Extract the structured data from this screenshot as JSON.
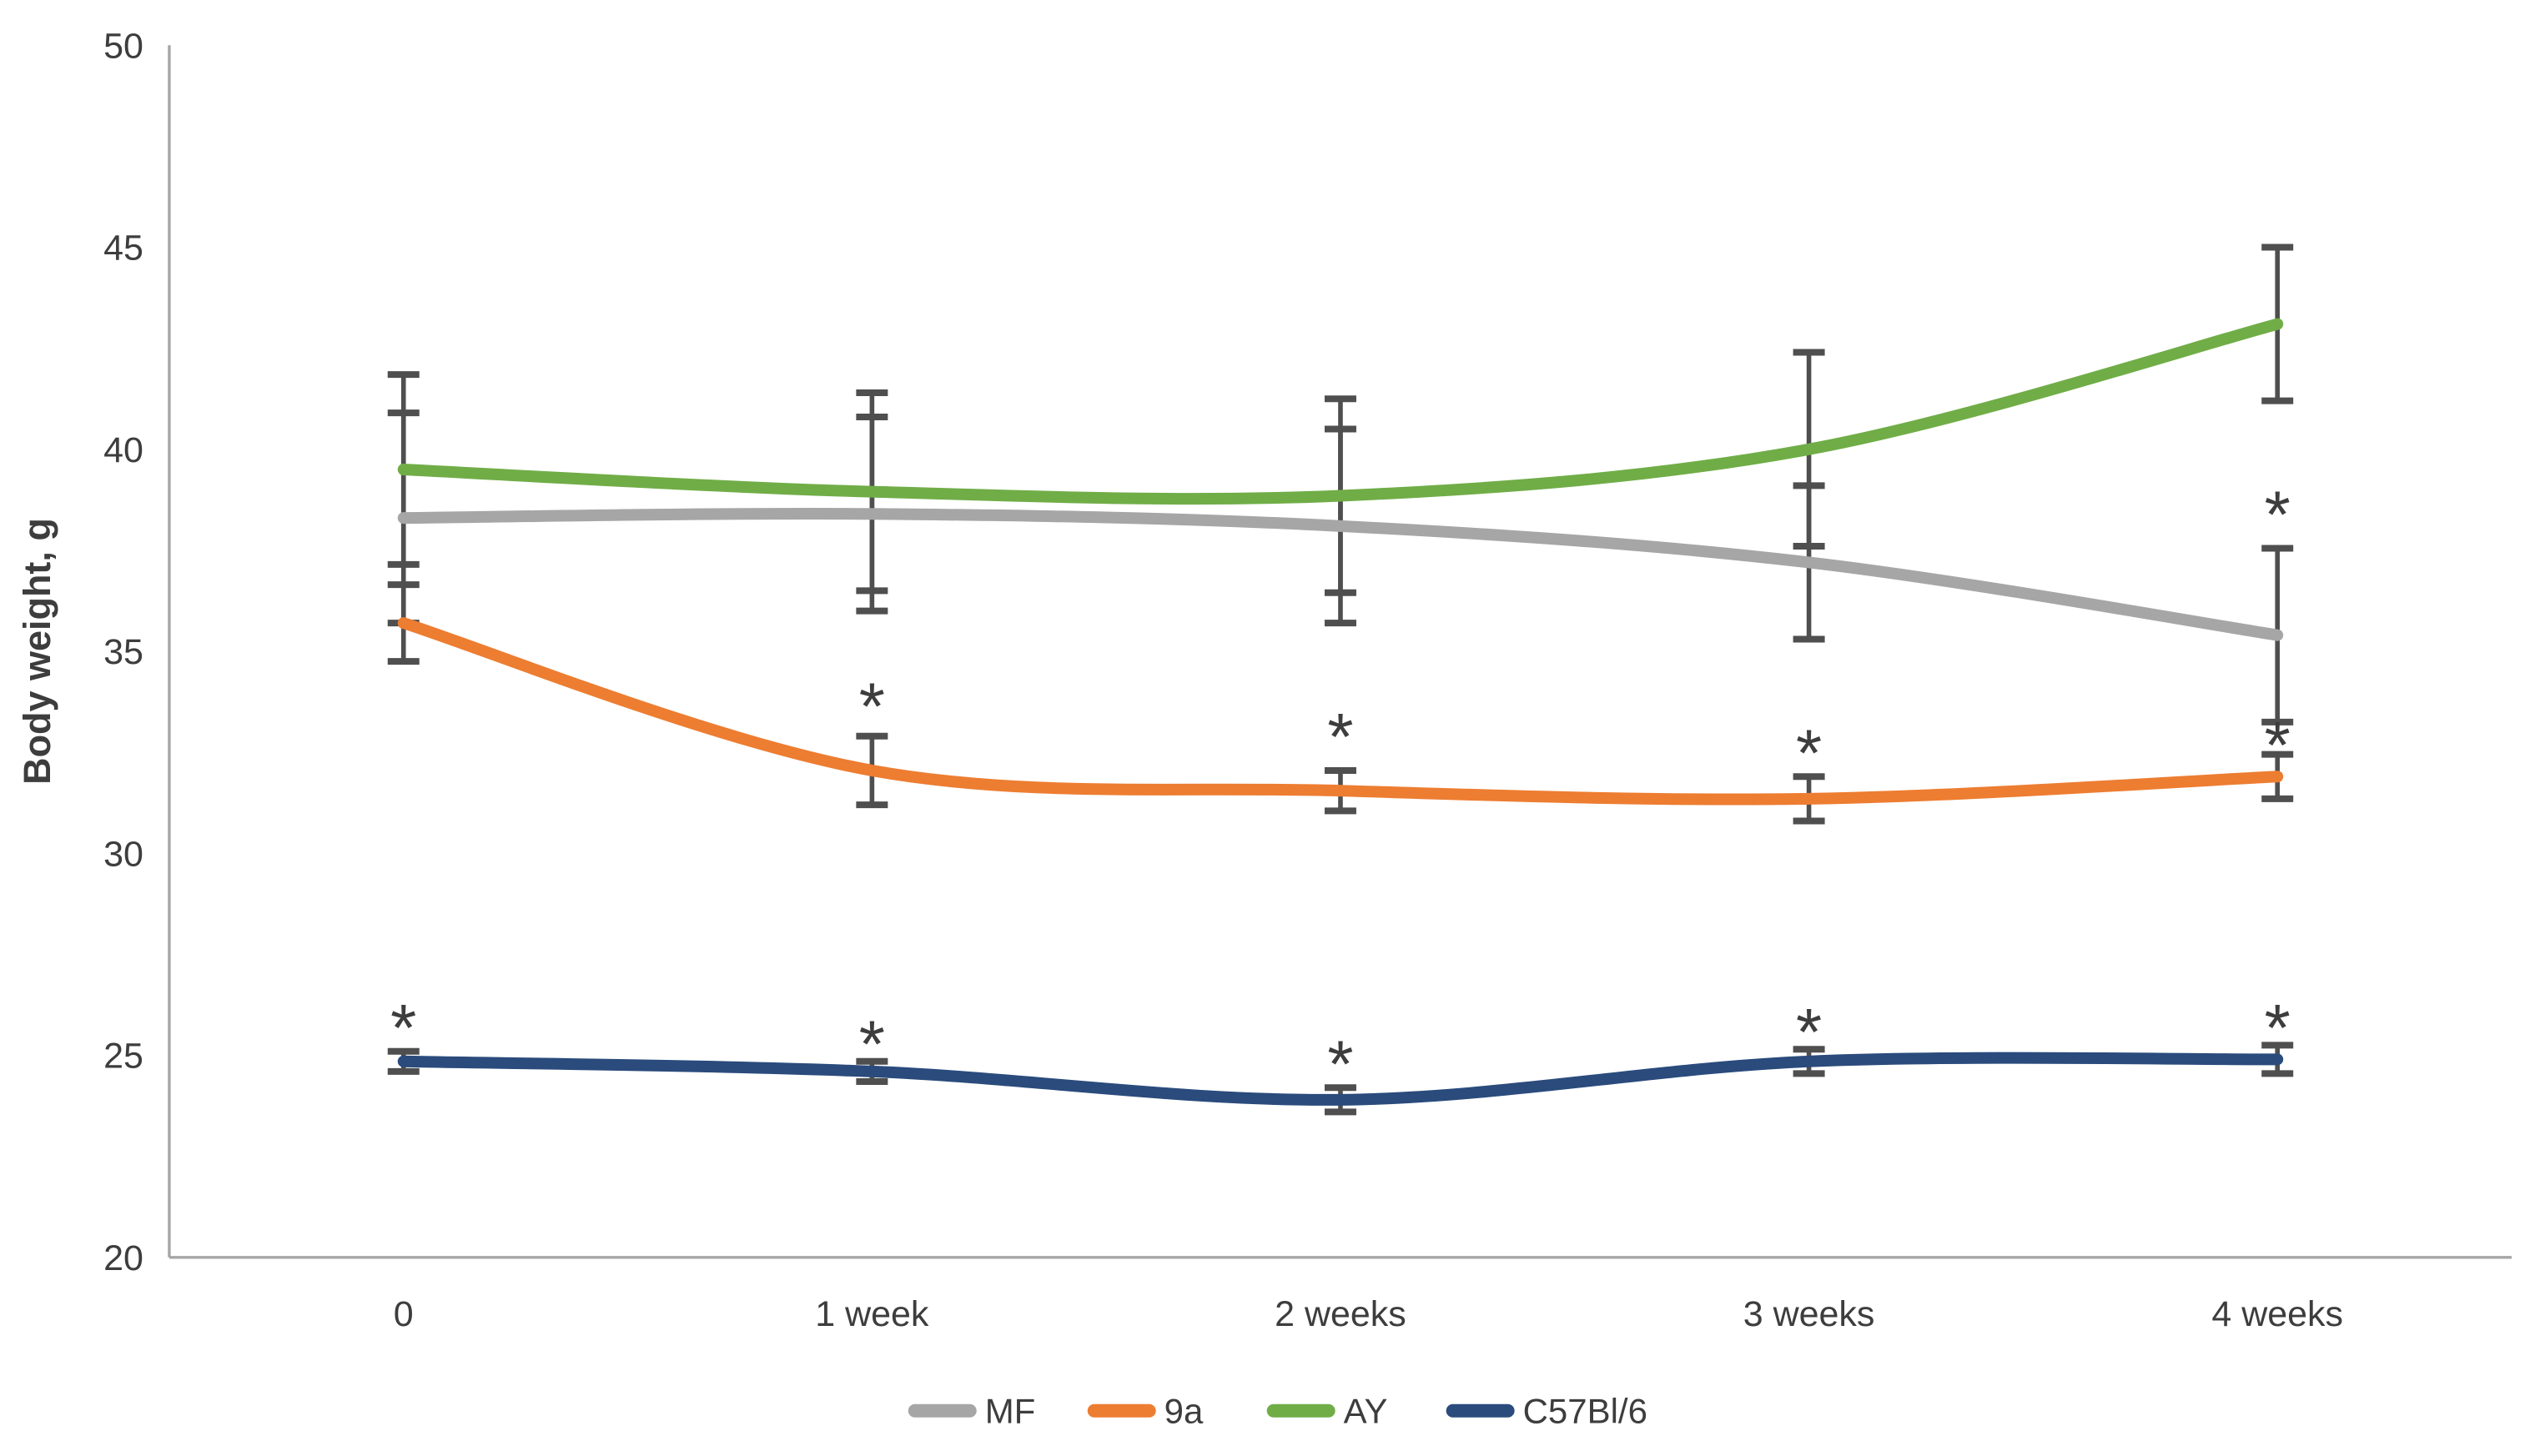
{
  "figure": {
    "kind": "line-chart-with-error-bars",
    "background": "#ffffff"
  },
  "y_axis": {
    "title": "Body weight, g",
    "min": 20,
    "max": 50,
    "step": 5,
    "tick_labels": [
      "50",
      "45",
      "40",
      "35",
      "30",
      "25",
      "20"
    ]
  },
  "x_axis": {
    "categories": [
      "0",
      "1 week",
      "2 weeks",
      "3 weeks",
      "4 weeks"
    ]
  },
  "legend": {
    "position": "bottom",
    "items": [
      {
        "label": "MF",
        "color": "#a6a6a6"
      },
      {
        "label": "9a",
        "color": "#ed7d31"
      },
      {
        "label": "AY",
        "color": "#70ad47"
      },
      {
        "label": "C57Bl/6",
        "color": "#2a4b7c"
      }
    ]
  },
  "marks": {
    "significance_symbol": "*"
  },
  "colors": {
    "axis_line": "#a6a6a6",
    "error_bar": "#4f4f4f",
    "text": "#3d3d3d",
    "asterisk": "#1a1a1a"
  },
  "chart_data": {
    "type": "line",
    "title": "",
    "xlabel": "",
    "ylabel": "Body weight, g",
    "ylim": [
      20,
      50
    ],
    "ytick_step": 5,
    "grid": false,
    "smoothed_lines": true,
    "legend_position": "bottom",
    "categories": [
      "0",
      "1 week",
      "2 weeks",
      "3 weeks",
      "4 weeks"
    ],
    "series": [
      {
        "name": "MF",
        "color": "#a6a6a6",
        "values": [
          38.3,
          38.4,
          38.1,
          37.2,
          35.4
        ],
        "errors": [
          2.6,
          2.4,
          2.4,
          1.9,
          2.15
        ],
        "asterisks": [
          null,
          null,
          null,
          null,
          38.6
        ]
      },
      {
        "name": "9a",
        "color": "#ed7d31",
        "values": [
          35.7,
          32.05,
          31.55,
          31.35,
          31.9
        ],
        "errors": [
          0.95,
          0.85,
          0.5,
          0.55,
          0.55
        ],
        "asterisks": [
          null,
          33.85,
          33.1,
          32.7,
          32.9
        ]
      },
      {
        "name": "AY",
        "color": "#70ad47",
        "values": [
          39.5,
          38.95,
          38.85,
          40.0,
          43.1
        ],
        "errors": [
          2.35,
          2.45,
          2.4,
          2.4,
          1.9
        ],
        "asterisks": [
          null,
          null,
          null,
          null,
          null
        ]
      },
      {
        "name": "C57Bl/6",
        "color": "#2a4b7c",
        "values": [
          24.85,
          24.6,
          23.9,
          24.85,
          24.9
        ],
        "errors": [
          0.25,
          0.25,
          0.3,
          0.3,
          0.35
        ],
        "asterisks": [
          25.9,
          25.5,
          25.0,
          25.8,
          25.9
        ]
      }
    ]
  }
}
